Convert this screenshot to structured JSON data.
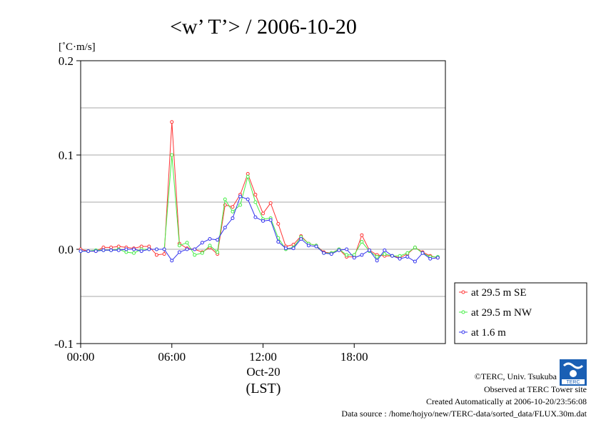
{
  "chart_data": {
    "type": "line",
    "title": "<w’ T’> / 2006-10-20",
    "ylabel": "[˚C·m/s]",
    "xlabel_date": "Oct-20",
    "xlabel_tz": "(LST)",
    "ylim": [
      -0.1,
      0.2
    ],
    "xlim_hours": [
      0,
      24
    ],
    "y_ticks": [
      {
        "v": 0.2,
        "label": "0.2"
      },
      {
        "v": 0.1,
        "label": "0.1"
      },
      {
        "v": 0.0,
        "label": "0.0"
      },
      {
        "v": -0.1,
        "label": "-0.1"
      }
    ],
    "x_ticks": [
      {
        "v": 0,
        "label": "00:00"
      },
      {
        "v": 6,
        "label": "06:00"
      },
      {
        "v": 12,
        "label": "12:00"
      },
      {
        "v": 18,
        "label": "18:00"
      }
    ],
    "grid": true,
    "legend_position": "right-bottom",
    "x": [
      0,
      0.5,
      1,
      1.5,
      2,
      2.5,
      3,
      3.5,
      4,
      4.5,
      5,
      5.5,
      6,
      6.5,
      7,
      7.5,
      8,
      8.5,
      9,
      9.5,
      10,
      10.5,
      11,
      11.5,
      12,
      12.5,
      13,
      13.5,
      14,
      14.5,
      15,
      15.5,
      16,
      16.5,
      17,
      17.5,
      18,
      18.5,
      19,
      19.5,
      20,
      20.5,
      21,
      21.5,
      22,
      22.5,
      23,
      23.5
    ],
    "series": [
      {
        "name": "at 29.5 m SE",
        "color": "#ff3333",
        "values": [
          0.0,
          -0.002,
          -0.002,
          0.002,
          0.002,
          0.003,
          0.002,
          0.001,
          0.003,
          0.003,
          -0.006,
          -0.005,
          0.135,
          0.006,
          0.001,
          0.0,
          -0.003,
          0.002,
          -0.005,
          0.047,
          0.045,
          0.058,
          0.08,
          0.058,
          0.038,
          0.049,
          0.027,
          0.003,
          0.005,
          0.014,
          0.006,
          0.004,
          -0.003,
          -0.004,
          0.0,
          -0.008,
          -0.008,
          0.015,
          -0.001,
          -0.006,
          -0.007,
          -0.007,
          -0.009,
          -0.005,
          0.002,
          -0.003,
          -0.007,
          -0.009
        ]
      },
      {
        "name": "at 29.5 m NW",
        "color": "#44ee44",
        "values": [
          -0.002,
          -0.002,
          -0.001,
          -0.001,
          -0.001,
          0.0,
          -0.003,
          -0.004,
          0.0,
          0.0,
          0.0,
          0.0,
          0.1,
          0.004,
          0.007,
          -0.006,
          -0.004,
          0.004,
          -0.003,
          0.053,
          0.04,
          0.047,
          0.077,
          0.05,
          0.032,
          0.033,
          0.012,
          0.0,
          0.002,
          0.013,
          0.006,
          0.004,
          -0.004,
          -0.004,
          0.0,
          -0.006,
          -0.006,
          0.008,
          -0.002,
          -0.008,
          -0.005,
          -0.007,
          -0.007,
          -0.004,
          0.002,
          -0.004,
          -0.008,
          -0.008
        ]
      },
      {
        "name": "at 1.6 m",
        "color": "#3333ee",
        "values": [
          -0.002,
          -0.002,
          -0.002,
          -0.001,
          -0.001,
          -0.001,
          0.0,
          0.0,
          -0.002,
          0.0,
          0.0,
          0.0,
          -0.012,
          -0.003,
          0.0,
          0.0,
          0.007,
          0.011,
          0.01,
          0.023,
          0.033,
          0.056,
          0.053,
          0.034,
          0.03,
          0.031,
          0.008,
          0.001,
          0.001,
          0.011,
          0.004,
          0.003,
          -0.004,
          -0.005,
          -0.001,
          0.0,
          -0.009,
          -0.006,
          -0.001,
          -0.012,
          -0.001,
          -0.007,
          -0.01,
          -0.008,
          -0.013,
          -0.004,
          -0.01,
          -0.009
        ]
      }
    ]
  },
  "footer": {
    "copyright": "©TERC, Univ. Tsukuba",
    "observed": "Observed at TERC Tower site",
    "created": "Created Automatically at 2006-10-20/23:56:08",
    "source": "Data source : /home/hojyo/new/TERC-data/sorted_data/FLUX.30m.dat"
  },
  "logo": {
    "name": "terc-logo-icon",
    "text": "TERC"
  }
}
